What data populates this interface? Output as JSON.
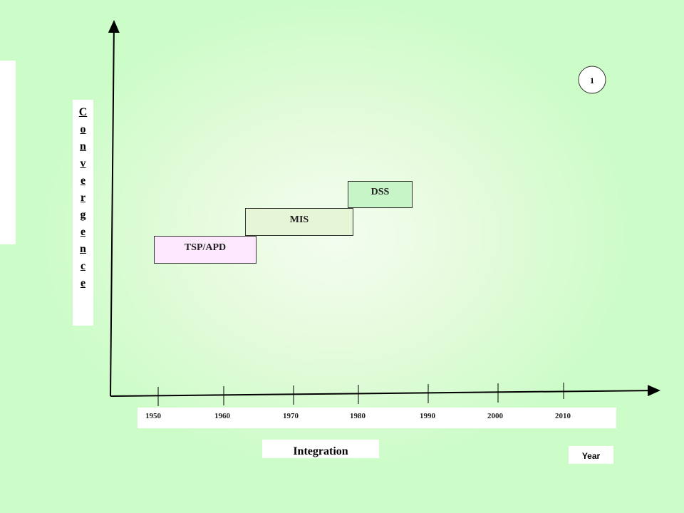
{
  "axis": {
    "y_label": "Convergence",
    "x_label": "Integration",
    "unit": "Year",
    "ticks": [
      "1950",
      "1960",
      "1970",
      "1980",
      "1990",
      "2000",
      "2010"
    ]
  },
  "boxes": [
    {
      "label": "TSP/APD"
    },
    {
      "label": "MIS"
    },
    {
      "label": "DSS"
    }
  ],
  "slide_number": "1"
}
